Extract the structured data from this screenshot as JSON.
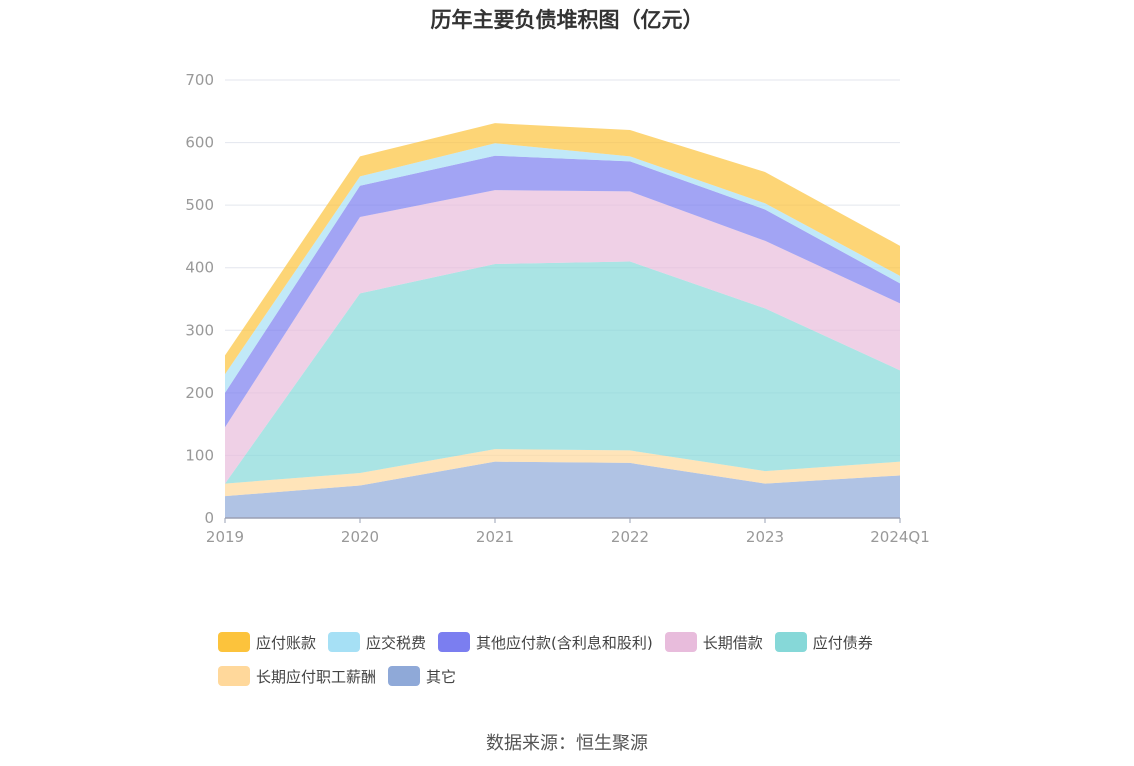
{
  "chart_data": {
    "type": "area",
    "stacked": true,
    "title": "历年主要负债堆积图（亿元）",
    "categories": [
      "2019",
      "2020",
      "2021",
      "2022",
      "2023",
      "2024Q1"
    ],
    "ylim": [
      0,
      700
    ],
    "yticks": [
      0,
      100,
      200,
      300,
      400,
      500,
      600,
      700
    ],
    "grid": true,
    "legend_position": "bottom",
    "series": [
      {
        "name": "其它",
        "color": "#8fa9d8",
        "values": [
          35,
          52,
          90,
          88,
          55,
          68
        ]
      },
      {
        "name": "长期应付职工薪酬",
        "color": "#ffd89b",
        "values": [
          20,
          20,
          20,
          20,
          20,
          22
        ]
      },
      {
        "name": "应付债券",
        "color": "#86d8d8",
        "values": [
          0,
          287,
          296,
          302,
          260,
          146
        ]
      },
      {
        "name": "长期借款",
        "color": "#e8bcdc",
        "values": [
          90,
          122,
          118,
          112,
          108,
          107
        ]
      },
      {
        "name": "其他应付款(含利息和股利)",
        "color": "#7b7ef0",
        "values": [
          55,
          50,
          55,
          48,
          50,
          32
        ]
      },
      {
        "name": "应交税费",
        "color": "#a6e0f5",
        "values": [
          30,
          15,
          20,
          8,
          10,
          12
        ]
      },
      {
        "name": "应付账款",
        "color": "#fcc33c",
        "values": [
          30,
          32,
          32,
          42,
          50,
          48
        ]
      }
    ],
    "legend_order": [
      "应付账款",
      "应交税费",
      "其他应付款(含利息和股利)",
      "长期借款",
      "应付债券",
      "长期应付职工薪酬",
      "其它"
    ]
  },
  "source": "数据来源：恒生聚源"
}
